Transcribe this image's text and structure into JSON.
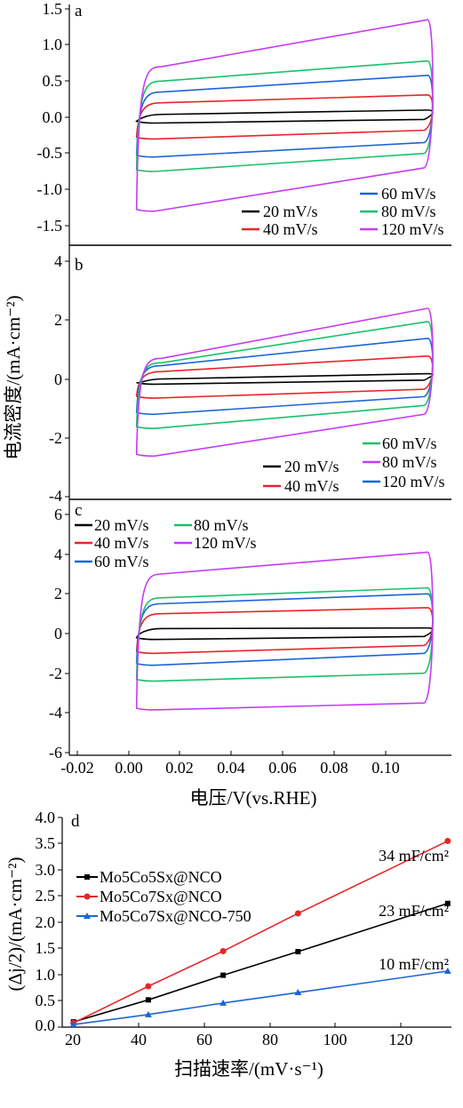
{
  "figure": {
    "cv_ylabel": "电流密度/(mA·cm⁻²)",
    "cv_xlabel": "电压/V(vs.RHE)",
    "cv_x_ticks": [
      "-0.02",
      "0.00",
      "0.02",
      "0.04",
      "0.06",
      "0.08",
      "0.10"
    ]
  },
  "chart_data": [
    {
      "panel": "a",
      "type": "line",
      "x_range": [
        -0.025,
        0.1
      ],
      "ylim": [
        -1.75,
        1.5
      ],
      "y_ticks": [
        "1.5",
        "1.0",
        "0.5",
        "0.0",
        "-0.5",
        "-1.0",
        "-1.5"
      ],
      "legend": [
        "20 mV/s",
        "40 mV/s",
        "60 mV/s",
        "80 mV/s",
        "120 mV/s"
      ],
      "series": [
        {
          "name": "20 mV/s",
          "color": "#000000",
          "x0": -0.003,
          "x1": 0.094,
          "upper": [
            0.04,
            0.1
          ],
          "lower": [
            -0.08,
            -0.03
          ]
        },
        {
          "name": "40 mV/s",
          "color": "#e8252a",
          "x0": -0.003,
          "x1": 0.094,
          "upper": [
            0.2,
            0.31
          ],
          "lower": [
            -0.3,
            -0.18
          ]
        },
        {
          "name": "60 mV/s",
          "color": "#1c64d6",
          "x0": -0.003,
          "x1": 0.094,
          "upper": [
            0.35,
            0.58
          ],
          "lower": [
            -0.55,
            -0.35
          ]
        },
        {
          "name": "80 mV/s",
          "color": "#19c16a",
          "x0": -0.003,
          "x1": 0.094,
          "upper": [
            0.5,
            0.78
          ],
          "lower": [
            -0.75,
            -0.5
          ]
        },
        {
          "name": "120 mV/s",
          "color": "#c63bf2",
          "x0": -0.003,
          "x1": 0.094,
          "upper": [
            0.7,
            1.35
          ],
          "lower": [
            -1.3,
            -0.7
          ]
        }
      ]
    },
    {
      "panel": "b",
      "type": "line",
      "x_range": [
        -0.025,
        0.1
      ],
      "ylim": [
        -4,
        4
      ],
      "y_ticks": [
        "4",
        "2",
        "0",
        "-2",
        "-4"
      ],
      "legend": [
        "20 mV/s",
        "40 mV/s",
        "60 mV/s",
        "80 mV/s",
        "120 mV/s"
      ],
      "series": [
        {
          "name": "20 mV/s",
          "color": "#000000",
          "x0": -0.003,
          "x1": 0.094,
          "upper": [
            0.0,
            0.18
          ],
          "lower": [
            -0.18,
            -0.04
          ]
        },
        {
          "name": "40 mV/s",
          "color": "#e8252a",
          "x0": -0.003,
          "x1": 0.094,
          "upper": [
            0.25,
            0.78
          ],
          "lower": [
            -0.65,
            -0.35
          ]
        },
        {
          "name": "60 mV/s",
          "color": "#1c64d6",
          "x0": -0.003,
          "x1": 0.094,
          "upper": [
            0.45,
            1.38
          ],
          "lower": [
            -1.2,
            -0.6
          ]
        },
        {
          "name": "80 mV/s",
          "color": "#19c16a",
          "x0": -0.003,
          "x1": 0.094,
          "upper": [
            0.55,
            1.95
          ],
          "lower": [
            -1.68,
            -0.9
          ]
        },
        {
          "name": "120 mV/s",
          "color": "#c63bf2",
          "x0": -0.003,
          "x1": 0.094,
          "upper": [
            0.7,
            2.4
          ],
          "lower": [
            -2.62,
            -1.2
          ]
        }
      ]
    },
    {
      "panel": "c",
      "type": "line",
      "x_range": [
        -0.025,
        0.1
      ],
      "ylim": [
        -6.5,
        6.5
      ],
      "y_ticks": [
        "6",
        "4",
        "2",
        "0",
        "-2",
        "-4",
        "-6"
      ],
      "legend": [
        "20 mV/s",
        "40 mV/s",
        "60 mV/s",
        "80 mV/s",
        "120 mV/s"
      ],
      "series": [
        {
          "name": "20 mV/s",
          "color": "#000000",
          "x0": -0.003,
          "x1": 0.094,
          "upper": [
            0.25,
            0.28
          ],
          "lower": [
            -0.3,
            -0.15
          ]
        },
        {
          "name": "40 mV/s",
          "color": "#e8252a",
          "x0": -0.003,
          "x1": 0.094,
          "upper": [
            1.0,
            1.3
          ],
          "lower": [
            -1.0,
            -0.6
          ]
        },
        {
          "name": "60 mV/s",
          "color": "#1c64d6",
          "x0": -0.003,
          "x1": 0.094,
          "upper": [
            1.5,
            2.0
          ],
          "lower": [
            -1.6,
            -1.0
          ]
        },
        {
          "name": "80 mV/s",
          "color": "#19c16a",
          "x0": -0.003,
          "x1": 0.094,
          "upper": [
            1.8,
            2.3
          ],
          "lower": [
            -2.4,
            -2.0
          ]
        },
        {
          "name": "120 mV/s",
          "color": "#c63bf2",
          "x0": -0.003,
          "x1": 0.094,
          "upper": [
            3.0,
            4.1
          ],
          "lower": [
            -3.85,
            -3.5
          ]
        }
      ]
    },
    {
      "panel": "d",
      "type": "line",
      "xlabel": "扫描速率/(mV·s⁻¹)",
      "ylabel": "(Δj/2)/(mA·cm⁻²)",
      "xlim": [
        17,
        121
      ],
      "ylim": [
        0,
        4
      ],
      "x_ticks": [
        "20",
        "40",
        "60",
        "80",
        "100",
        "120"
      ],
      "y_ticks": [
        "4.0",
        "3.5",
        "3.0",
        "2.5",
        "2.0",
        "1.5",
        "1.0",
        "0.5",
        "0.0"
      ],
      "x": [
        20,
        40,
        60,
        80,
        120
      ],
      "series": [
        {
          "name": "Mo5Co5Sx@NCO",
          "color": "#000000",
          "marker": "square",
          "values": [
            0.1,
            0.52,
            0.99,
            1.44,
            2.36
          ],
          "annotation": "23 mF/cm²"
        },
        {
          "name": "Mo5Co7Sx@NCO",
          "color": "#e8252a",
          "marker": "circle",
          "values": [
            0.08,
            0.78,
            1.45,
            2.17,
            3.55
          ],
          "annotation": "34 mF/cm²"
        },
        {
          "name": "Mo5Co7Sx@NCO-750",
          "color": "#1c64d6",
          "marker": "triangle",
          "values": [
            0.05,
            0.24,
            0.46,
            0.66,
            1.07
          ],
          "annotation": "10 mF/cm²"
        }
      ]
    }
  ]
}
